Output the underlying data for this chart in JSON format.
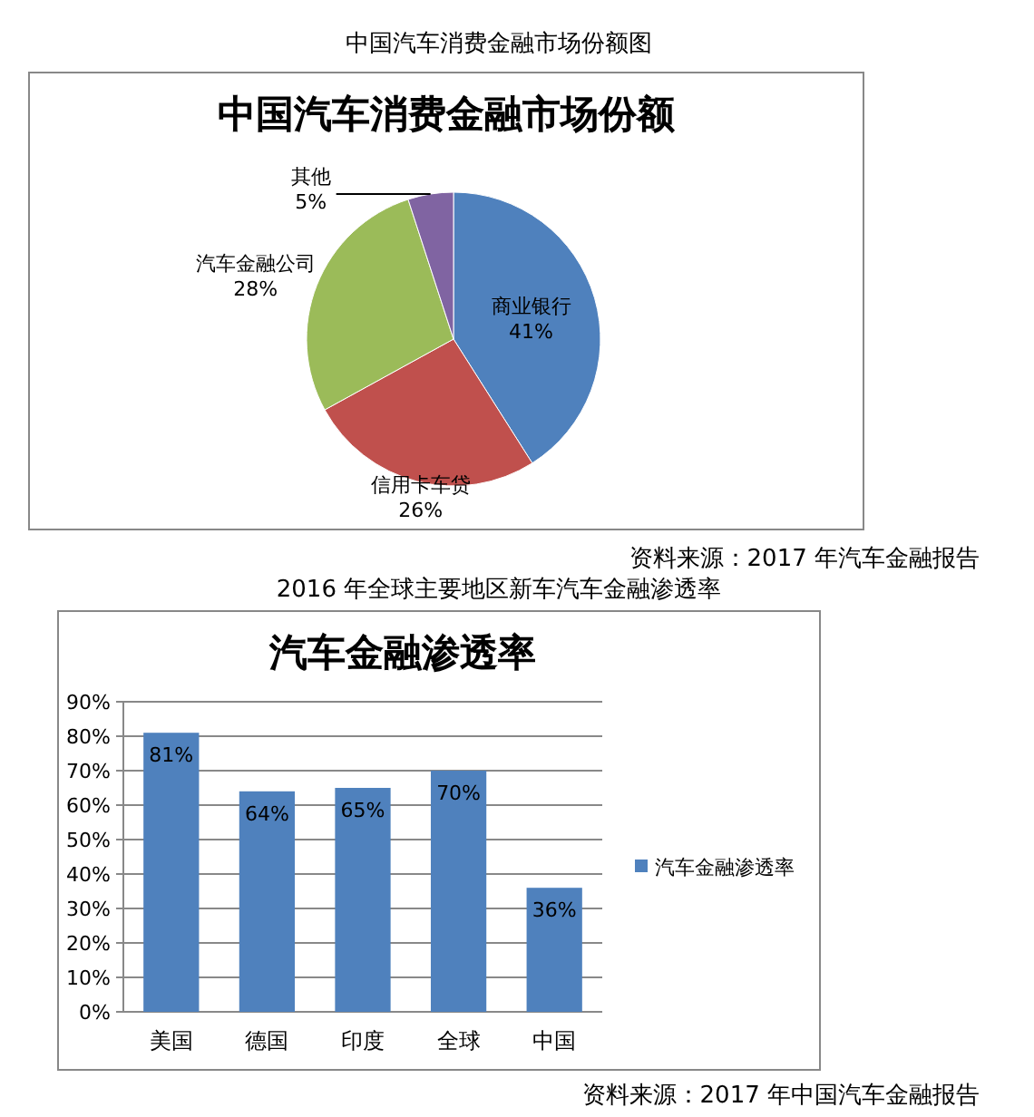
{
  "chart_data": [
    {
      "type": "pie",
      "subtitle": "中国汽车消费金融市场份额图",
      "title": "中国汽车消费金融市场份额",
      "annotations": [
        "资料来源：2017 年汽车金融报告"
      ],
      "categories": [
        "商业银行",
        "信用卡车贷",
        "汽车金融公司",
        "其他"
      ],
      "values": [
        41,
        26,
        28,
        5
      ],
      "colors": [
        "#4f81bd",
        "#c0504d",
        "#9bbb59",
        "#8064a2"
      ],
      "value_labels": [
        "41%",
        "26%",
        "28%",
        "5%"
      ]
    },
    {
      "type": "bar",
      "subtitle": "2016 年全球主要地区新车汽车金融渗透率",
      "title": "汽车金融渗透率",
      "annotations": [
        "资料来源：2017 年中国汽车金融报告"
      ],
      "categories": [
        "美国",
        "德国",
        "印度",
        "全球",
        "中国"
      ],
      "series": [
        {
          "name": "汽车金融渗透率",
          "color": "#4f81bd",
          "values": [
            81,
            64,
            65,
            70,
            36
          ],
          "value_labels": [
            "81%",
            "64%",
            "65%",
            "70%",
            "36%"
          ]
        }
      ],
      "ylim": [
        0,
        90
      ],
      "yticks": [
        {
          "value": 0,
          "label": "0%"
        },
        {
          "value": 10,
          "label": "10%"
        },
        {
          "value": 20,
          "label": "20%"
        },
        {
          "value": 30,
          "label": "30%"
        },
        {
          "value": 40,
          "label": "40%"
        },
        {
          "value": 50,
          "label": "50%"
        },
        {
          "value": 60,
          "label": "60%"
        },
        {
          "value": 70,
          "label": "70%"
        },
        {
          "value": 80,
          "label": "80%"
        },
        {
          "value": 90,
          "label": "90%"
        }
      ],
      "grid": "y",
      "legend": "right"
    }
  ]
}
